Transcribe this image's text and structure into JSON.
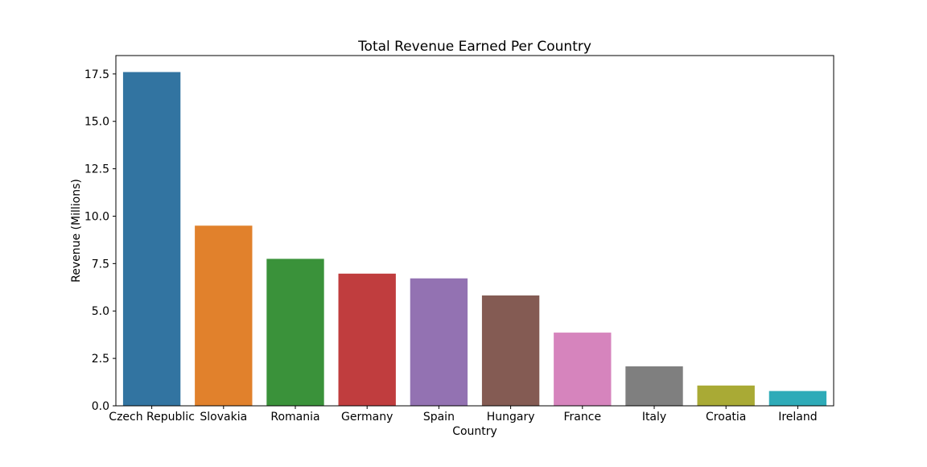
{
  "chart_data": {
    "type": "bar",
    "title": "Total Revenue Earned Per Country",
    "xlabel": "Country",
    "ylabel": "Revenue (Millions)",
    "categories": [
      "Czech Republic",
      "Slovakia",
      "Romania",
      "Germany",
      "Spain",
      "Hungary",
      "France",
      "Italy",
      "Croatia",
      "Ireland"
    ],
    "values": [
      17.6,
      9.5,
      7.75,
      6.97,
      6.72,
      5.82,
      3.86,
      2.08,
      1.07,
      0.78
    ],
    "colors": [
      "#3274a1",
      "#e1812c",
      "#3a923a",
      "#c03d3e",
      "#9372b2",
      "#845b53",
      "#d684bd",
      "#7f7f7f",
      "#a9aa35",
      "#2eabb8"
    ],
    "ylim": [
      0,
      18.47
    ],
    "yticks": [
      "0.0",
      "2.5",
      "5.0",
      "7.5",
      "10.0",
      "12.5",
      "15.0",
      "17.5"
    ],
    "grid": false,
    "legend": false
  }
}
